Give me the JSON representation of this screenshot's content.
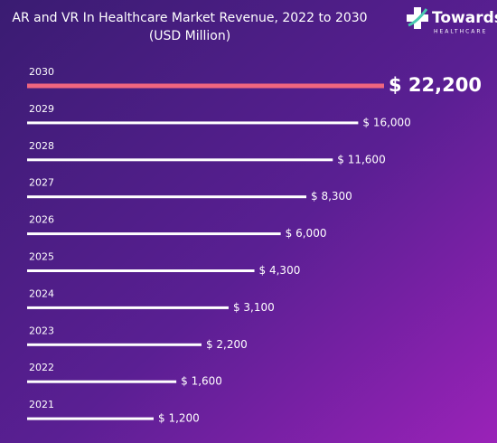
{
  "logo": {
    "name": "Towards",
    "tagline": "HEALTHCARE"
  },
  "chart_data": {
    "type": "bar",
    "orientation": "horizontal",
    "title": "AR and VR In Healthcare Market Revenue, 2022 to 2030",
    "subtitle": "(USD Million)",
    "categories": [
      "2030",
      "2029",
      "2028",
      "2027",
      "2026",
      "2025",
      "2024",
      "2023",
      "2022",
      "2021"
    ],
    "values": [
      22200,
      16000,
      11600,
      8300,
      6000,
      4300,
      3100,
      2200,
      1600,
      1200
    ],
    "value_labels": [
      "$ 22,200",
      "$ 16,000",
      "$ 11,600",
      "$ 8,300",
      "$ 6,000",
      "$ 4,300",
      "$ 3,100",
      "$ 2,200",
      "$ 1,600",
      "$ 1,200"
    ],
    "colors": [
      "#f0657f",
      "#ffffff",
      "#ffffff",
      "#ffffff",
      "#ffffff",
      "#ffffff",
      "#ffffff",
      "#ffffff",
      "#ffffff",
      "#ffffff"
    ],
    "log_scale": true
  }
}
